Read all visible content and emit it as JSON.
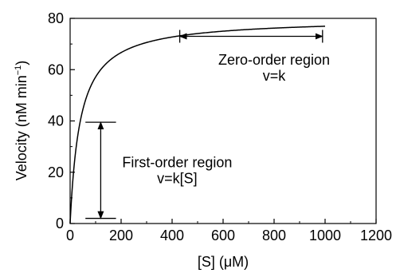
{
  "chart_data": {
    "type": "line",
    "title": "",
    "xlabel": "[S] (μM)",
    "ylabel_main": "Velocity (nM min",
    "ylabel_sup": "−1",
    "ylabel_close": ")",
    "xlim": [
      0,
      1200
    ],
    "ylim": [
      0,
      80
    ],
    "xticks": [
      0,
      200,
      400,
      600,
      800,
      1000,
      1200
    ],
    "yticks": [
      0,
      20,
      40,
      60,
      80
    ],
    "grid": false,
    "series": [
      {
        "curve": "michaelis-menten",
        "vmax": 80,
        "km": 40,
        "x_range": [
          0,
          1000
        ]
      }
    ],
    "annotations": [
      {
        "id": "zero-order",
        "lines": [
          "Zero-order region",
          "v=k"
        ],
        "arrow": "horizontal",
        "from": [
          430,
          73
        ],
        "to": [
          990,
          73
        ],
        "end_caps": true,
        "label_at": [
          800,
          62
        ]
      },
      {
        "id": "first-order",
        "lines": [
          "First-order region",
          "v=k[S]"
        ],
        "arrow": "vertical",
        "from": [
          120,
          2
        ],
        "to": [
          120,
          39.5
        ],
        "end_caps": true,
        "cap_range": [
          60,
          180
        ],
        "label_at": [
          420,
          22
        ]
      }
    ]
  }
}
